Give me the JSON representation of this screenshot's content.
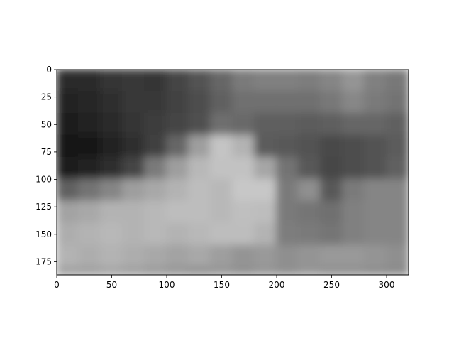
{
  "chart_data": {
    "type": "heatmap",
    "title": "",
    "xlabel": "",
    "ylabel": "",
    "xlim": [
      0,
      320
    ],
    "ylim": [
      187,
      0
    ],
    "x_ticks": [
      0,
      50,
      100,
      150,
      200,
      250,
      300
    ],
    "y_ticks": [
      0,
      25,
      50,
      75,
      100,
      125,
      150,
      175
    ],
    "x_tick_labels": [
      "0",
      "50",
      "100",
      "150",
      "200",
      "250",
      "300"
    ],
    "y_tick_labels": [
      "0",
      "25",
      "50",
      "75",
      "100",
      "125",
      "150",
      "175"
    ],
    "colormap": "gray",
    "grid": false,
    "image_description": "blurred grayscale photograph of a pale mountain-shaped slope against a dark sky",
    "cell_size": 20,
    "grid_cols": 16,
    "grid_rows": 10,
    "values": [
      [
        0.17,
        0.17,
        0.21,
        0.22,
        0.21,
        0.27,
        0.32,
        0.4,
        0.48,
        0.5,
        0.5,
        0.49,
        0.52,
        0.58,
        0.5,
        0.47
      ],
      [
        0.14,
        0.15,
        0.18,
        0.22,
        0.22,
        0.26,
        0.3,
        0.38,
        0.44,
        0.44,
        0.44,
        0.44,
        0.47,
        0.53,
        0.48,
        0.45
      ],
      [
        0.11,
        0.13,
        0.17,
        0.21,
        0.24,
        0.27,
        0.31,
        0.43,
        0.41,
        0.37,
        0.37,
        0.36,
        0.37,
        0.4,
        0.4,
        0.38
      ],
      [
        0.08,
        0.09,
        0.14,
        0.18,
        0.25,
        0.4,
        0.62,
        0.77,
        0.7,
        0.36,
        0.35,
        0.32,
        0.29,
        0.3,
        0.32,
        0.36
      ],
      [
        0.11,
        0.14,
        0.18,
        0.27,
        0.48,
        0.62,
        0.72,
        0.76,
        0.76,
        0.65,
        0.45,
        0.35,
        0.28,
        0.3,
        0.32,
        0.38
      ],
      [
        0.38,
        0.45,
        0.52,
        0.62,
        0.66,
        0.7,
        0.74,
        0.72,
        0.78,
        0.78,
        0.48,
        0.56,
        0.35,
        0.48,
        0.52,
        0.52
      ],
      [
        0.64,
        0.66,
        0.7,
        0.7,
        0.72,
        0.74,
        0.74,
        0.72,
        0.75,
        0.74,
        0.48,
        0.46,
        0.44,
        0.5,
        0.52,
        0.52
      ],
      [
        0.68,
        0.7,
        0.72,
        0.7,
        0.72,
        0.7,
        0.72,
        0.74,
        0.74,
        0.7,
        0.49,
        0.48,
        0.46,
        0.5,
        0.52,
        0.52
      ],
      [
        0.7,
        0.68,
        0.7,
        0.68,
        0.66,
        0.64,
        0.66,
        0.62,
        0.58,
        0.6,
        0.56,
        0.58,
        0.6,
        0.6,
        0.58,
        0.56
      ],
      [
        0.62,
        0.62,
        0.64,
        0.62,
        0.6,
        0.58,
        0.56,
        0.58,
        0.56,
        0.58,
        0.56,
        0.58,
        0.56,
        0.56,
        0.55,
        0.54
      ]
    ]
  }
}
